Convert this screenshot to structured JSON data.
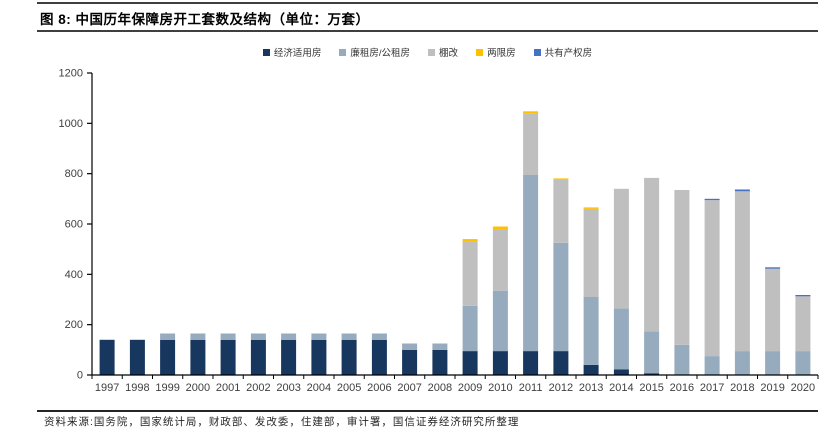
{
  "header": {
    "title": "图 8: 中国历年保障房开工套数及结构（单位：万套）"
  },
  "footer": {
    "source": "资料来源:国务院，国家统计局，财政部、发改委，住建部，审计署，国信证券经济研究所整理"
  },
  "colors": {
    "economy_housing": "#17375E",
    "public_rental": "#97ABBF",
    "shantytown": "#BFBFBF",
    "two_limit": "#FFC000",
    "shared_ownership": "#4472C4",
    "axis": "#000000",
    "tick_label": "#404040",
    "divider": "#3f3f3f"
  },
  "chart_data": {
    "type": "bar",
    "stacked": true,
    "title": "中国历年保障房开工套数及结构",
    "unit": "万套",
    "xlabel": "",
    "ylabel": "",
    "ylim": [
      0,
      1200
    ],
    "yticks": [
      0,
      200,
      400,
      600,
      800,
      1000,
      1200
    ],
    "grid": false,
    "legend_position": "top-center",
    "categories": [
      "1997",
      "1998",
      "1999",
      "2000",
      "2001",
      "2002",
      "2003",
      "2004",
      "2005",
      "2006",
      "2007",
      "2008",
      "2009",
      "2010",
      "2011",
      "2012",
      "2013",
      "2014",
      "2015",
      "2016",
      "2017",
      "2018",
      "2019",
      "2020"
    ],
    "series": [
      {
        "name": "经济适用房",
        "color": "#17375E",
        "values": [
          140,
          140,
          140,
          140,
          140,
          140,
          140,
          140,
          140,
          140,
          100,
          100,
          95,
          95,
          95,
          95,
          40,
          22,
          7,
          0,
          0,
          0,
          0,
          0
        ]
      },
      {
        "name": "廉租房/公租房",
        "color": "#97ABBF",
        "values": [
          0,
          0,
          25,
          25,
          25,
          25,
          25,
          25,
          25,
          25,
          25,
          25,
          180,
          240,
          700,
          430,
          270,
          243,
          166,
          120,
          75,
          95,
          95,
          95
        ]
      },
      {
        "name": "棚改",
        "color": "#BFBFBF",
        "values": [
          0,
          0,
          0,
          0,
          0,
          0,
          0,
          0,
          0,
          0,
          0,
          0,
          255,
          245,
          245,
          250,
          350,
          475,
          610,
          615,
          620,
          635,
          328,
          218
        ]
      },
      {
        "name": "两限房",
        "color": "#FFC000",
        "values": [
          0,
          0,
          0,
          0,
          0,
          0,
          0,
          0,
          0,
          0,
          0,
          0,
          10,
          10,
          8,
          6,
          6,
          0,
          0,
          0,
          0,
          0,
          0,
          0
        ]
      },
      {
        "name": "共有产权房",
        "color": "#4472C4",
        "values": [
          0,
          0,
          0,
          0,
          0,
          0,
          0,
          0,
          0,
          0,
          0,
          0,
          0,
          0,
          0,
          0,
          0,
          0,
          0,
          0,
          5,
          7,
          5,
          5
        ]
      }
    ],
    "totals_note": [
      140,
      140,
      165,
      165,
      165,
      165,
      165,
      165,
      165,
      165,
      125,
      125,
      540,
      590,
      1048,
      781,
      666,
      740,
      783,
      735,
      700,
      737,
      428,
      318
    ]
  }
}
